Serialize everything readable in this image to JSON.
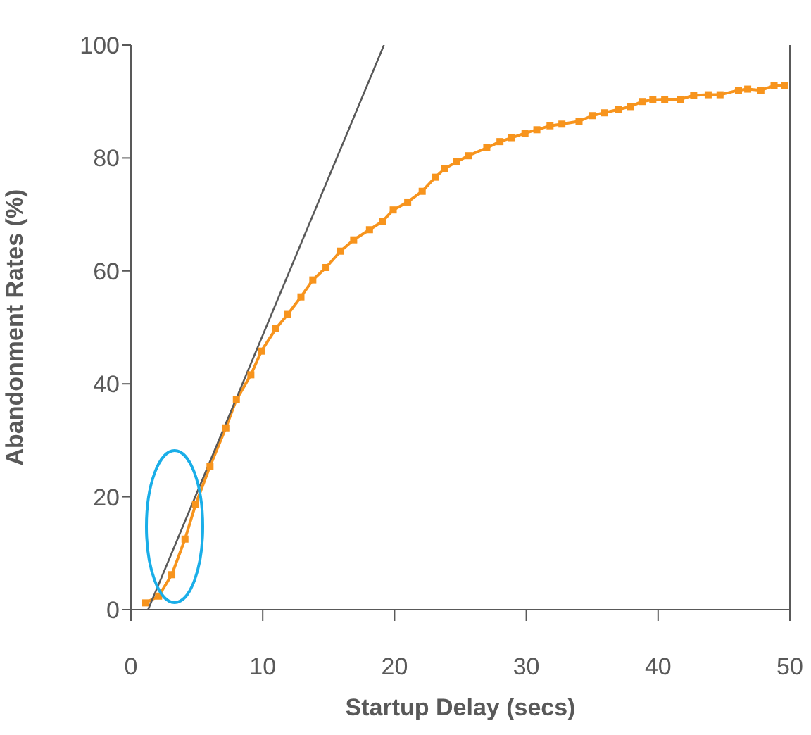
{
  "chart_data": {
    "type": "line",
    "xlabel": "Startup Delay (secs)",
    "ylabel": "Abandonment Rates (%)",
    "xlim": [
      0,
      50
    ],
    "xticks": [
      0,
      10,
      20,
      30,
      40,
      50
    ],
    "ylim": [
      0,
      100
    ],
    "yticks": [
      0,
      20,
      40,
      60,
      80,
      100
    ],
    "series": [
      {
        "color": "#f7941d",
        "marker": "square",
        "x": [
          1.1,
          2.1,
          3.1,
          4.1,
          4.9,
          6,
          7.2,
          8,
          9.1,
          9.9,
          11,
          11.9,
          12.9,
          13.8,
          14.8,
          15.9,
          16.9,
          18.1,
          19.1,
          19.9,
          21,
          22.1,
          23.1,
          23.8,
          24.7,
          25.6,
          27,
          28,
          28.9,
          29.9,
          30.8,
          31.8,
          32.7,
          34,
          35,
          35.9,
          37,
          37.9,
          38.8,
          39.6,
          40.5,
          41.7,
          42.7,
          43.8,
          44.7,
          46.1,
          46.8,
          47.8,
          48.8,
          49.6
        ],
        "values": [
          1.2,
          2.4,
          6.2,
          12.5,
          18.6,
          25.4,
          32.2,
          37.2,
          41.6,
          45.8,
          49.8,
          52.3,
          55.4,
          58.4,
          60.6,
          63.5,
          65.5,
          67.3,
          68.8,
          70.8,
          72.2,
          74.1,
          76.6,
          78.1,
          79.3,
          80.4,
          81.8,
          82.9,
          83.6,
          84.4,
          85,
          85.7,
          86,
          86.5,
          87.5,
          88,
          88.6,
          89.1,
          90,
          90.3,
          90.4,
          90.4,
          91.1,
          91.2,
          91.2,
          92,
          92.2,
          92,
          92.8,
          92.8
        ]
      },
      {
        "type": "line",
        "color": "#595959",
        "marker": "none",
        "x": [
          1.3,
          19.2
        ],
        "values": [
          0,
          100
        ]
      }
    ]
  }
}
